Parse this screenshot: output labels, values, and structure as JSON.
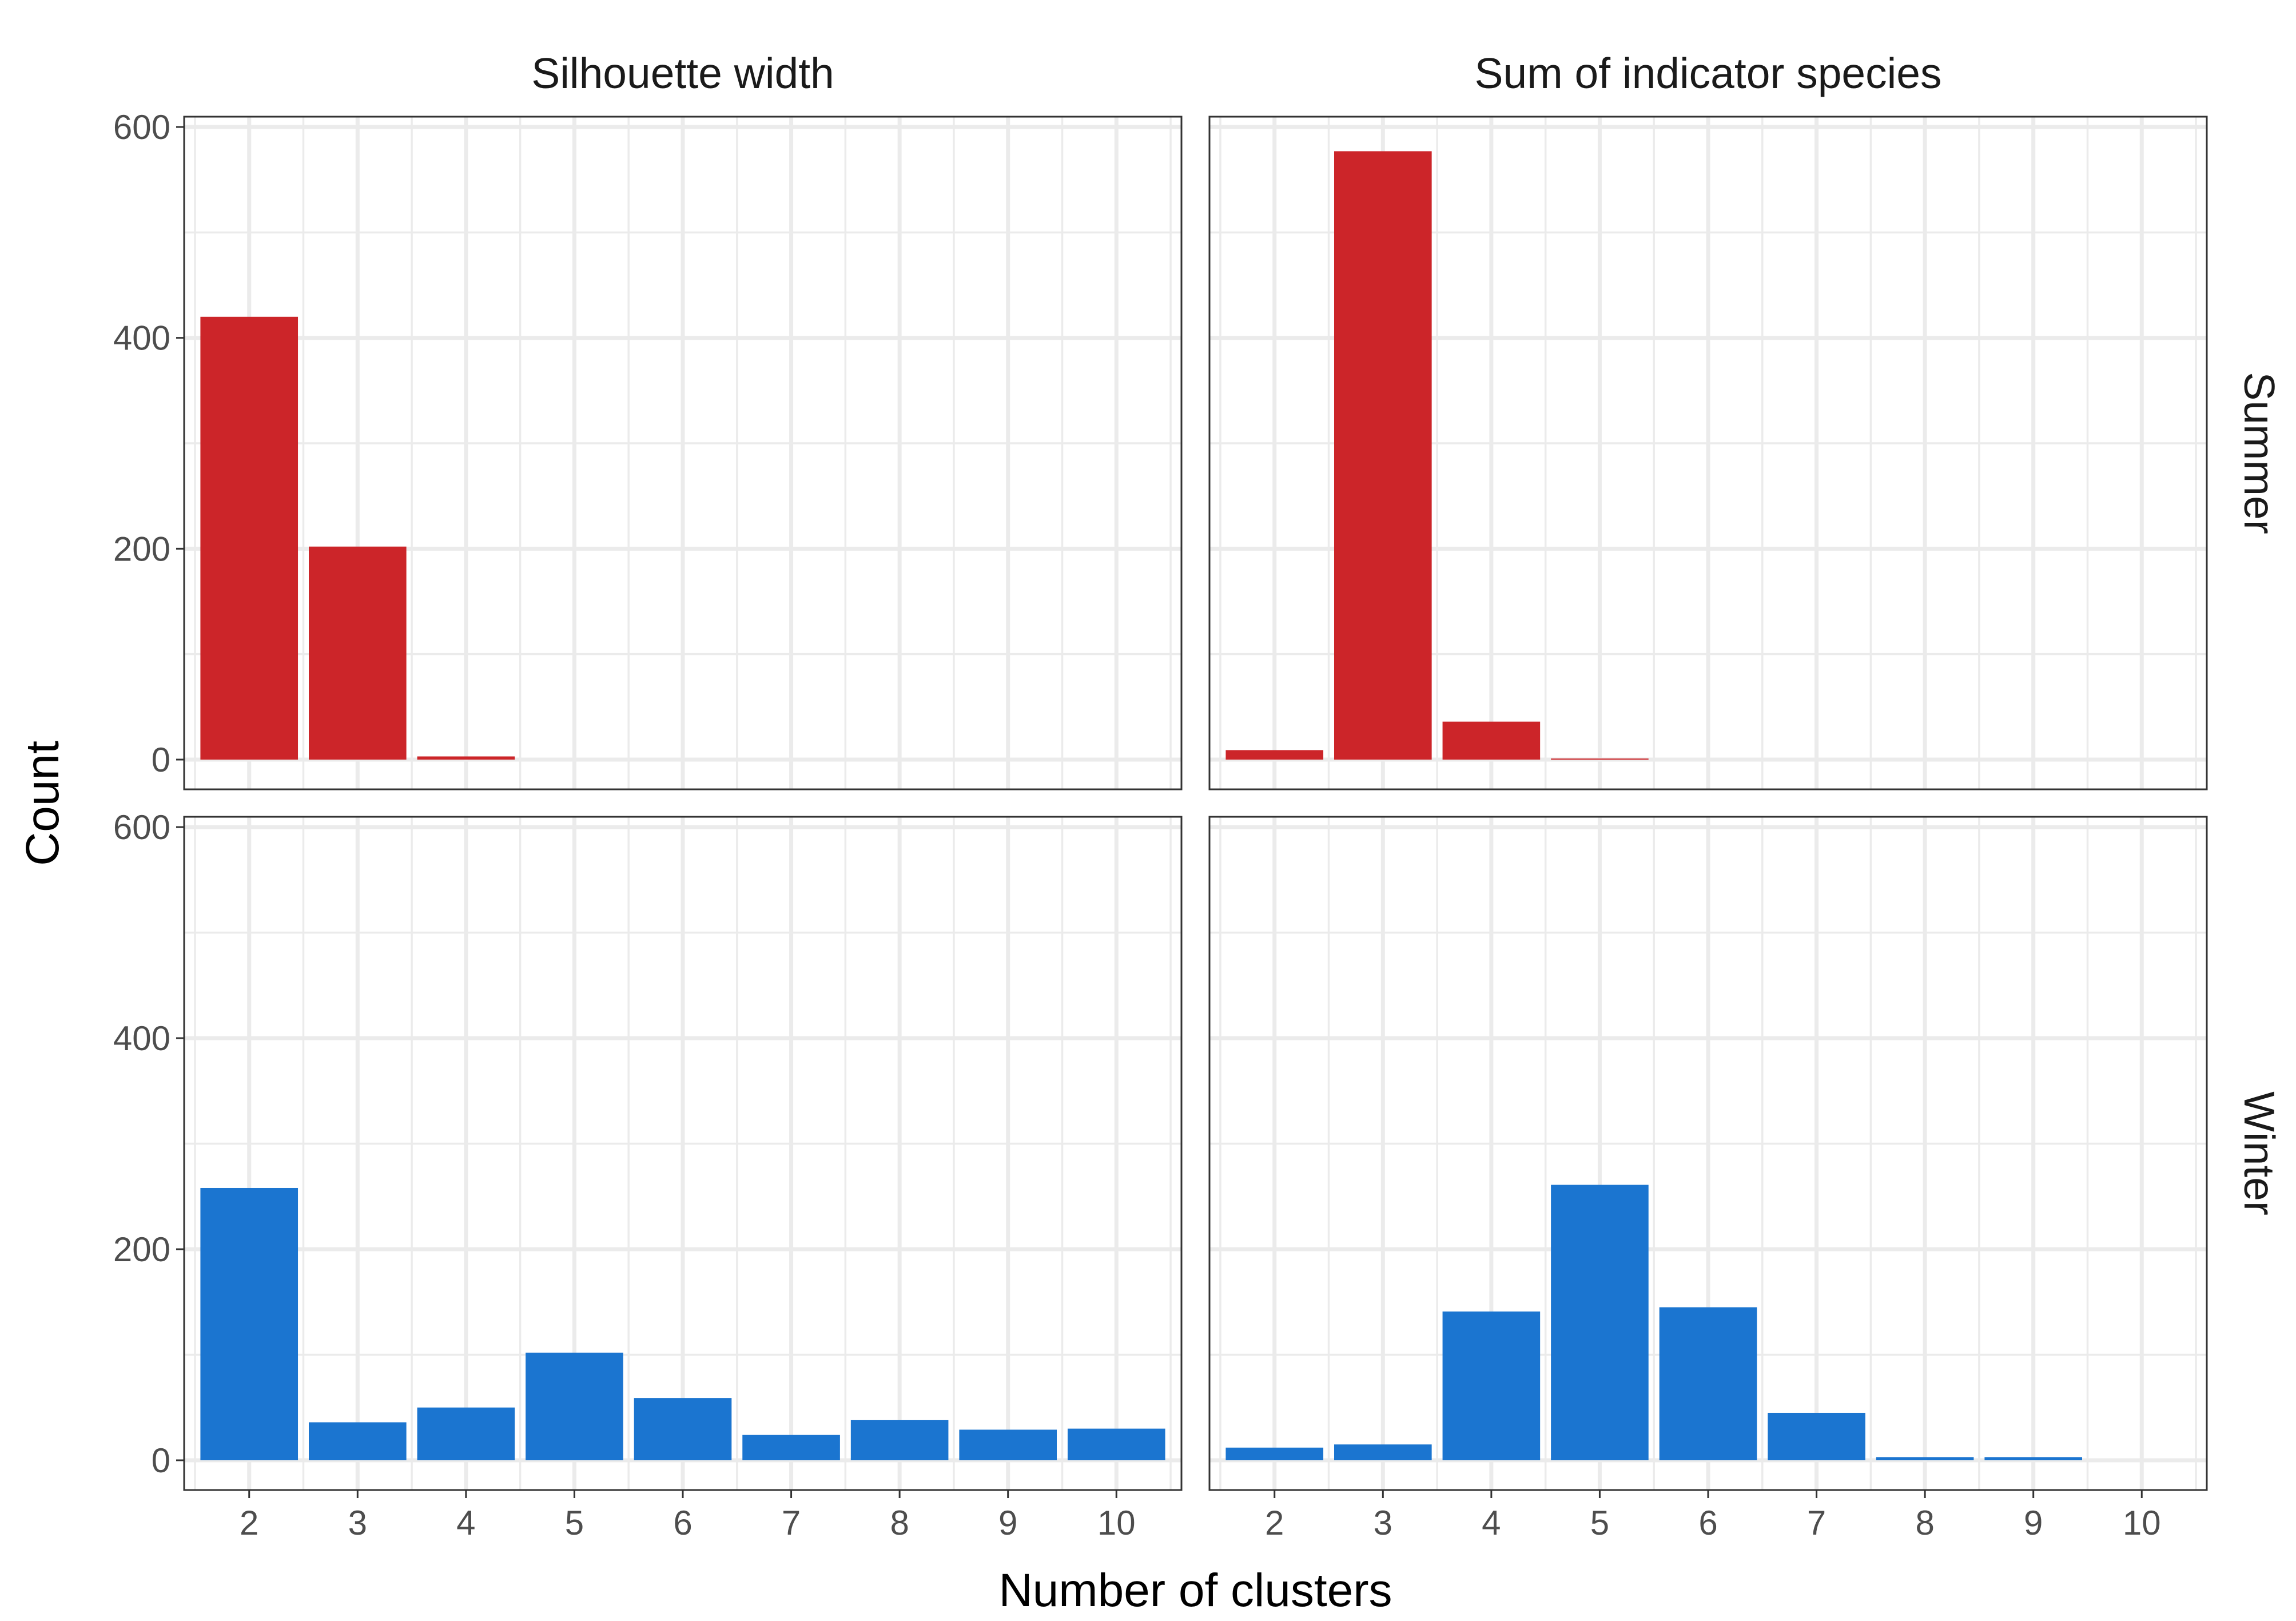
{
  "chart_data": {
    "type": "bar",
    "facet_columns": [
      "Silhouette width",
      "Sum of indicator species"
    ],
    "facet_rows": [
      "Summer",
      "Winter"
    ],
    "categories": [
      "2",
      "3",
      "4",
      "5",
      "6",
      "7",
      "8",
      "9",
      "10"
    ],
    "xlabel": "Number of clusters",
    "ylabel": "Count",
    "ylim": [
      0,
      600
    ],
    "yticks": [
      0,
      200,
      400,
      600
    ],
    "grid": true,
    "colors": {
      "Summer": "#cc2529",
      "Winter": "#1b75d0"
    },
    "panels": [
      {
        "row": "Summer",
        "column": "Silhouette width",
        "values": [
          420,
          202,
          3,
          0,
          0,
          0,
          0,
          0,
          0
        ]
      },
      {
        "row": "Summer",
        "column": "Sum of indicator species",
        "values": [
          9,
          577,
          36,
          1,
          0,
          0,
          0,
          0,
          0
        ]
      },
      {
        "row": "Winter",
        "column": "Silhouette width",
        "values": [
          258,
          36,
          50,
          102,
          59,
          24,
          38,
          29,
          30
        ]
      },
      {
        "row": "Winter",
        "column": "Sum of indicator species",
        "values": [
          12,
          15,
          141,
          261,
          145,
          45,
          3,
          3,
          0
        ]
      }
    ]
  }
}
